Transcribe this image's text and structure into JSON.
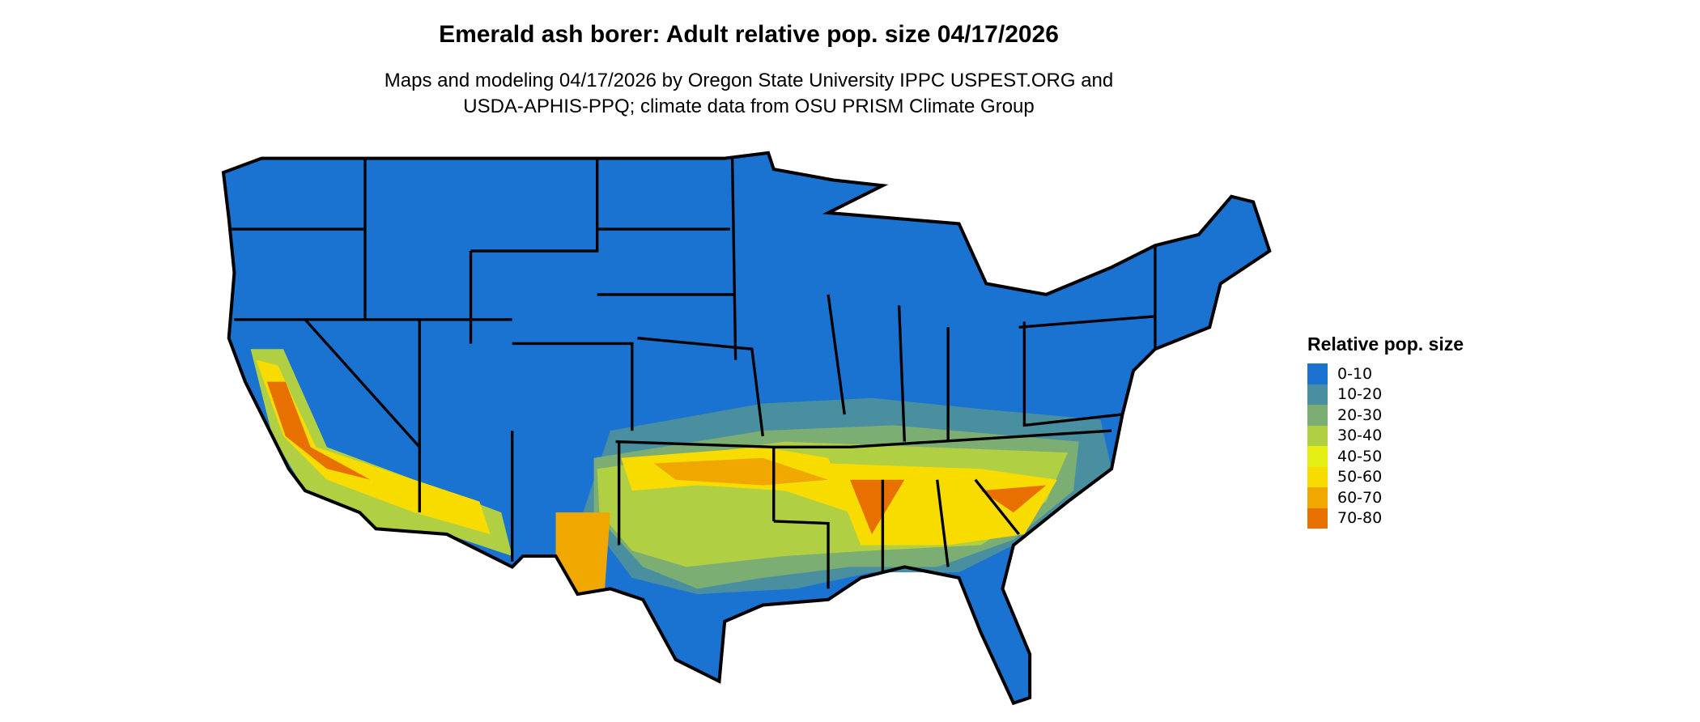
{
  "title": "Emerald ash borer: Adult relative pop. size 04/17/2026",
  "subtitle_lines": [
    "Maps and modeling 04/17/2026 by Oregon State University IPPC USPEST.ORG and",
    "USDA-APHIS-PPQ; climate data from OSU PRISM Climate Group"
  ],
  "legend": {
    "title": "Relative pop. size",
    "placement": "right",
    "items": [
      {
        "label": "0-10",
        "color": "#1a73d0"
      },
      {
        "label": "10-20",
        "color": "#4a8fa0"
      },
      {
        "label": "20-30",
        "color": "#7cae74"
      },
      {
        "label": "30-40",
        "color": "#b0cf42"
      },
      {
        "label": "40-50",
        "color": "#e4ee12"
      },
      {
        "label": "50-60",
        "color": "#f8dc00"
      },
      {
        "label": "60-70",
        "color": "#f0a800"
      },
      {
        "label": "70-80",
        "color": "#e87000"
      }
    ]
  }
}
